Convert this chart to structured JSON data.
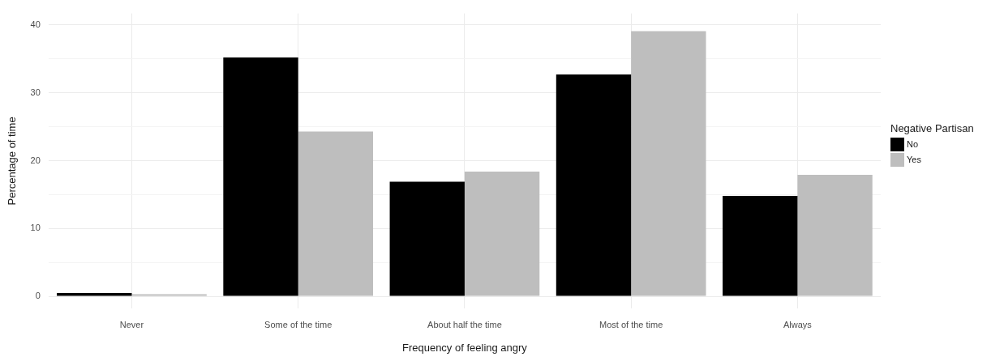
{
  "chart_data": {
    "type": "bar",
    "xlabel": "Frequency of feeling angry",
    "ylabel": "Percentage of time",
    "legend_title": "Negative Partisan",
    "categories": [
      "Never",
      "Some of the time",
      "About half the time",
      "Most of the time",
      "Always"
    ],
    "series": [
      {
        "name": "No",
        "color": "#000000",
        "values": [
          0.5,
          35.2,
          16.9,
          32.7,
          14.8
        ]
      },
      {
        "name": "Yes",
        "color": "#bebebe",
        "values": [
          0.3,
          24.3,
          18.4,
          39.1,
          17.9
        ]
      }
    ],
    "ylim": [
      -1.8,
      41.7
    ],
    "yticks": [
      0,
      {
        "value": 5,
        "label": null
      },
      10,
      {
        "value": 15,
        "label": null
      },
      20,
      {
        "value": 25,
        "label": null
      },
      30,
      {
        "value": 35,
        "label": null
      },
      40
    ],
    "grid": true,
    "legend": "right"
  }
}
